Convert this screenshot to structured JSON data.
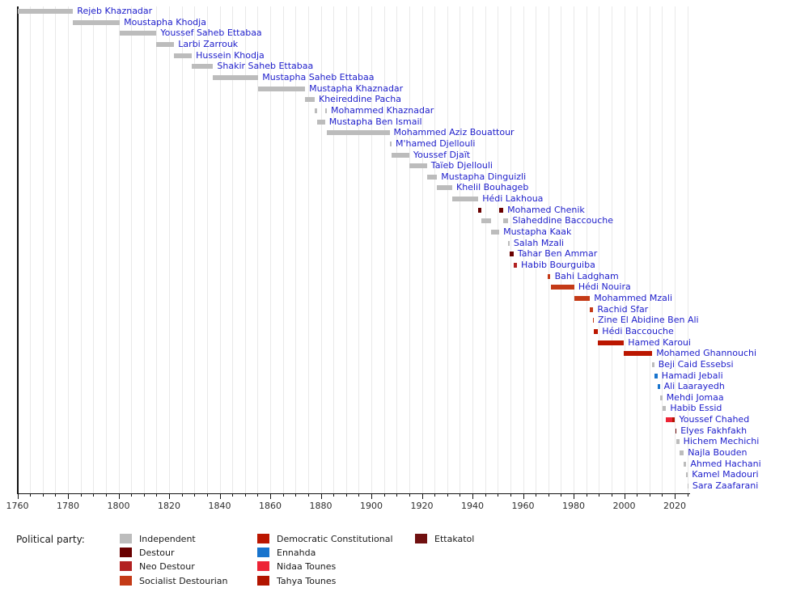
{
  "chart_data": {
    "type": "timeline",
    "title": "",
    "x_axis": {
      "min": 1760,
      "max": 2025.6,
      "minor_step": 5,
      "major_step": 20,
      "tick_labels": [
        "1760",
        "1780",
        "1800",
        "1820",
        "1840",
        "1860",
        "1880",
        "1900",
        "1920",
        "1940",
        "1960",
        "1980",
        "2000",
        "2020"
      ],
      "grid": true
    },
    "label_color": "#2121cc",
    "legend_title": "Political party:",
    "parties": {
      "independent": {
        "label": "Independent",
        "color": "#bcbcbc"
      },
      "destour": {
        "label": "Destour",
        "color": "#690000"
      },
      "neo_destour": {
        "label": "Neo Destour",
        "color": "#b22222"
      },
      "socialist_destourian": {
        "label": "Socialist Destourian",
        "color": "#c43a17"
      },
      "democratic_constitutional": {
        "label": "Democratic Constitutional",
        "color": "#bb1600"
      },
      "ennahda": {
        "label": "Ennahda",
        "color": "#1874cd"
      },
      "nidaa_tounes": {
        "label": "Nidaa Tounes",
        "color": "#ed2436"
      },
      "tahya_tounes": {
        "label": "Tahya Tounes",
        "color": "#b21500"
      },
      "ettakatol": {
        "label": "Ettakatol",
        "color": "#701010"
      }
    },
    "legend_columns": [
      [
        "independent",
        "destour",
        "neo_destour",
        "socialist_destourian"
      ],
      [
        "democratic_constitutional",
        "ennahda",
        "nidaa_tounes",
        "tahya_tounes"
      ],
      [
        "ettakatol"
      ]
    ],
    "rows": [
      {
        "name": "Rejeb Khaznadar",
        "segments": [
          {
            "start": 1760.0,
            "end": 1782.0,
            "party": "independent"
          }
        ]
      },
      {
        "name": "Moustapha Khodja",
        "segments": [
          {
            "start": 1782.0,
            "end": 1800.5,
            "party": "independent"
          }
        ]
      },
      {
        "name": "Youssef Saheb Ettabaa",
        "segments": [
          {
            "start": 1800.5,
            "end": 1815.0,
            "party": "independent"
          }
        ]
      },
      {
        "name": "Larbi Zarrouk",
        "segments": [
          {
            "start": 1815.0,
            "end": 1822.0,
            "party": "independent"
          }
        ]
      },
      {
        "name": "Hussein Khodja",
        "segments": [
          {
            "start": 1822.0,
            "end": 1829.0,
            "party": "independent"
          }
        ]
      },
      {
        "name": "Shakir Saheb Ettabaa",
        "segments": [
          {
            "start": 1829.0,
            "end": 1837.4,
            "party": "independent"
          }
        ]
      },
      {
        "name": "Mustapha Saheb Ettabaa",
        "segments": [
          {
            "start": 1837.4,
            "end": 1855.3,
            "party": "independent"
          }
        ]
      },
      {
        "name": "Mustapha Khaznadar",
        "segments": [
          {
            "start": 1855.3,
            "end": 1873.8,
            "party": "independent"
          }
        ]
      },
      {
        "name": "Kheireddine Pacha",
        "segments": [
          {
            "start": 1873.8,
            "end": 1877.6,
            "party": "independent"
          }
        ]
      },
      {
        "name": "Mohammed Khaznadar",
        "segments": [
          {
            "start": 1877.6,
            "end": 1878.7,
            "party": "independent"
          },
          {
            "start": 1881.7,
            "end": 1882.4,
            "party": "independent"
          }
        ]
      },
      {
        "name": "Mustapha Ben Ismail",
        "segments": [
          {
            "start": 1878.7,
            "end": 1881.7,
            "party": "independent"
          }
        ]
      },
      {
        "name": "Mohammed Aziz Bouattour",
        "segments": [
          {
            "start": 1882.4,
            "end": 1907.2,
            "party": "independent"
          }
        ]
      },
      {
        "name": "M'hamed Djellouli",
        "segments": [
          {
            "start": 1907.2,
            "end": 1908.0,
            "party": "independent"
          }
        ]
      },
      {
        "name": "Youssef Djaït",
        "segments": [
          {
            "start": 1908.0,
            "end": 1915.0,
            "party": "independent"
          }
        ]
      },
      {
        "name": "Taïeb Djellouli",
        "segments": [
          {
            "start": 1915.0,
            "end": 1922.0,
            "party": "independent"
          }
        ]
      },
      {
        "name": "Mustapha Dinguizli",
        "segments": [
          {
            "start": 1922.0,
            "end": 1926.0,
            "party": "independent"
          }
        ]
      },
      {
        "name": "Khelil Bouhageb",
        "segments": [
          {
            "start": 1926.0,
            "end": 1932.0,
            "party": "independent"
          }
        ]
      },
      {
        "name": "Hédi Lakhoua",
        "segments": [
          {
            "start": 1932.0,
            "end": 1942.3,
            "party": "independent"
          }
        ]
      },
      {
        "name": "Mohamed Chenik",
        "segments": [
          {
            "start": 1942.3,
            "end": 1943.4,
            "party": "destour"
          },
          {
            "start": 1950.6,
            "end": 1952.2,
            "party": "destour"
          }
        ]
      },
      {
        "name": "Slaheddine Baccouche",
        "segments": [
          {
            "start": 1943.4,
            "end": 1947.5,
            "party": "independent"
          },
          {
            "start": 1952.2,
            "end": 1954.2,
            "party": "independent"
          }
        ]
      },
      {
        "name": "Mustapha Kaak",
        "segments": [
          {
            "start": 1947.5,
            "end": 1950.6,
            "party": "independent"
          }
        ]
      },
      {
        "name": "Salah Mzali",
        "segments": [
          {
            "start": 1954.2,
            "end": 1954.7,
            "party": "independent"
          }
        ]
      },
      {
        "name": "Tahar Ben Ammar",
        "segments": [
          {
            "start": 1954.7,
            "end": 1956.3,
            "party": "destour"
          }
        ]
      },
      {
        "name": "Habib Bourguiba",
        "segments": [
          {
            "start": 1956.3,
            "end": 1957.6,
            "party": "neo_destour"
          }
        ]
      },
      {
        "name": "Bahi Ladgham",
        "segments": [
          {
            "start": 1969.9,
            "end": 1970.9,
            "party": "socialist_destourian"
          }
        ]
      },
      {
        "name": "Hédi Nouira",
        "segments": [
          {
            "start": 1970.9,
            "end": 1980.3,
            "party": "socialist_destourian"
          }
        ]
      },
      {
        "name": "Mohammed Mzali",
        "segments": [
          {
            "start": 1980.3,
            "end": 1986.5,
            "party": "socialist_destourian"
          }
        ]
      },
      {
        "name": "Rachid Sfar",
        "segments": [
          {
            "start": 1986.5,
            "end": 1987.8,
            "party": "socialist_destourian"
          }
        ]
      },
      {
        "name": "Zine El Abidine Ben Ali",
        "segments": [
          {
            "start": 1987.8,
            "end": 1988.0,
            "party": "socialist_destourian"
          }
        ]
      },
      {
        "name": "Hédi Baccouche",
        "segments": [
          {
            "start": 1988.0,
            "end": 1989.7,
            "party": "democratic_constitutional"
          }
        ]
      },
      {
        "name": "Hamed Karoui",
        "segments": [
          {
            "start": 1989.7,
            "end": 1999.9,
            "party": "democratic_constitutional"
          }
        ]
      },
      {
        "name": "Mohamed Ghannouchi",
        "segments": [
          {
            "start": 1999.9,
            "end": 2011.1,
            "party": "democratic_constitutional"
          }
        ]
      },
      {
        "name": "Beji Caid Essebsi",
        "segments": [
          {
            "start": 2011.1,
            "end": 2011.9,
            "party": "independent"
          }
        ]
      },
      {
        "name": "Hamadi Jebali",
        "segments": [
          {
            "start": 2011.9,
            "end": 2013.2,
            "party": "ennahda"
          }
        ]
      },
      {
        "name": "Ali Laarayedh",
        "segments": [
          {
            "start": 2013.2,
            "end": 2014.1,
            "party": "ennahda"
          }
        ]
      },
      {
        "name": "Mehdi Jomaa",
        "segments": [
          {
            "start": 2014.1,
            "end": 2015.1,
            "party": "independent"
          }
        ]
      },
      {
        "name": "Habib Essid",
        "segments": [
          {
            "start": 2015.1,
            "end": 2016.6,
            "party": "independent"
          }
        ]
      },
      {
        "name": "Youssef Chahed",
        "segments": [
          {
            "start": 2016.6,
            "end": 2019.0,
            "party": "nidaa_tounes"
          },
          {
            "start": 2019.0,
            "end": 2020.15,
            "party": "tahya_tounes"
          }
        ]
      },
      {
        "name": "Elyes Fakhfakh",
        "segments": [
          {
            "start": 2020.15,
            "end": 2020.7,
            "party": "ettakatol"
          }
        ]
      },
      {
        "name": "Hichem Mechichi",
        "segments": [
          {
            "start": 2020.7,
            "end": 2021.8,
            "party": "independent"
          }
        ]
      },
      {
        "name": "Najla Bouden",
        "segments": [
          {
            "start": 2021.8,
            "end": 2023.6,
            "party": "independent"
          }
        ]
      },
      {
        "name": "Ahmed Hachani",
        "segments": [
          {
            "start": 2023.6,
            "end": 2024.6,
            "party": "independent"
          }
        ]
      },
      {
        "name": "Kamel Madouri",
        "segments": [
          {
            "start": 2024.6,
            "end": 2025.2,
            "party": "independent"
          }
        ]
      },
      {
        "name": "Sara Zaafarani",
        "segments": [
          {
            "start": 2025.1,
            "end": 2025.4,
            "party": "independent"
          }
        ]
      }
    ]
  }
}
